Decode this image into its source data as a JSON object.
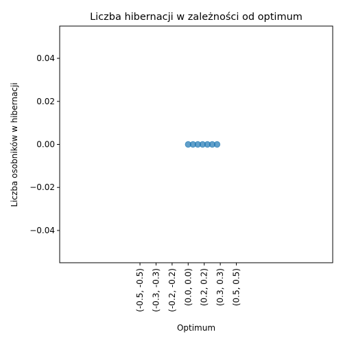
{
  "chart_data": {
    "type": "scatter",
    "title": "Liczba hibernacji w zależności od optimum",
    "xlabel": "Optimum",
    "ylabel": "Liczba osobników w hibernacji",
    "x_tick_labels": [
      "(-0.5, -0.5)",
      "(-0.3, -0.3)",
      "(-0.2, -0.2)",
      "(0.0, 0.0)",
      "(0.2, 0.2)",
      "(0.3, 0.3)",
      "(0.5, 0.5)"
    ],
    "y_tick_labels": [
      "−0.04",
      "−0.02",
      "0.00",
      "0.02",
      "0.04"
    ],
    "y_ticks": [
      -0.04,
      -0.02,
      0.0,
      0.02,
      0.04
    ],
    "ylim": [
      -0.055,
      0.055
    ],
    "xlim": [
      -0.1,
      0.24
    ],
    "x_tick_values": [
      0.0,
      0.02,
      0.04,
      0.06,
      0.08,
      0.1,
      0.12
    ],
    "points": [
      {
        "x": 0.06,
        "y": 0
      },
      {
        "x": 0.066,
        "y": 0
      },
      {
        "x": 0.072,
        "y": 0
      },
      {
        "x": 0.078,
        "y": 0
      },
      {
        "x": 0.084,
        "y": 0
      },
      {
        "x": 0.09,
        "y": 0
      },
      {
        "x": 0.096,
        "y": 0
      }
    ],
    "point_color": "#1f77b4",
    "grid": false,
    "legend": "none"
  }
}
